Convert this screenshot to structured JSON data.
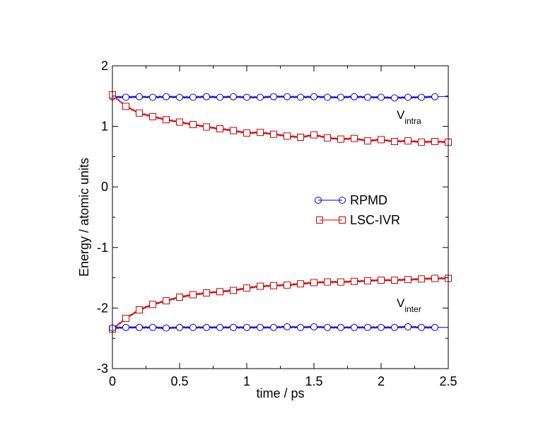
{
  "chart_data": {
    "type": "line",
    "xlabel": "time / ps",
    "ylabel": "Energy / atomic units",
    "xlim": [
      0,
      2.5
    ],
    "ylim": [
      -3,
      2
    ],
    "xticks": [
      0,
      0.5,
      1,
      1.5,
      2,
      2.5
    ],
    "xtick_labels": [
      "0",
      "0.5",
      "1",
      "1.5",
      "2",
      "2.5"
    ],
    "yticks": [
      -3,
      -2,
      -1,
      0,
      1,
      2
    ],
    "ytick_labels": [
      "-3",
      "-2",
      "-1",
      "0",
      "1",
      "2"
    ],
    "grid": false,
    "legend_position": "center-right",
    "legend": [
      {
        "label": "RPMD",
        "color": "#0000cc",
        "marker": "circle"
      },
      {
        "label": "LSC-IVR",
        "color": "#cc0000",
        "marker": "square"
      }
    ],
    "annotations": [
      {
        "text": "V",
        "subscript": "intra",
        "x": 2.11,
        "y": 1.18
      },
      {
        "text": "V",
        "subscript": "inter",
        "x": 2.11,
        "y": -2.0
      }
    ],
    "series": [
      {
        "name": "RPMD",
        "group": "Vintra",
        "color": "#0000cc",
        "marker": "circle",
        "x": [
          0,
          0.1,
          0.2,
          0.3,
          0.4,
          0.5,
          0.6,
          0.7,
          0.8,
          0.9,
          1.0,
          1.1,
          1.2,
          1.3,
          1.4,
          1.5,
          1.6,
          1.7,
          1.8,
          1.9,
          2.0,
          2.1,
          2.2,
          2.3,
          2.4
        ],
        "y": [
          1.49,
          1.48,
          1.49,
          1.48,
          1.49,
          1.48,
          1.48,
          1.49,
          1.48,
          1.49,
          1.48,
          1.48,
          1.49,
          1.49,
          1.48,
          1.49,
          1.48,
          1.48,
          1.49,
          1.48,
          1.48,
          1.47,
          1.48,
          1.48,
          1.49
        ]
      },
      {
        "name": "LSC-IVR",
        "group": "Vintra",
        "color": "#cc0000",
        "marker": "square",
        "x": [
          0,
          0.1,
          0.2,
          0.3,
          0.4,
          0.5,
          0.6,
          0.7,
          0.8,
          0.9,
          1.0,
          1.1,
          1.2,
          1.3,
          1.4,
          1.5,
          1.6,
          1.7,
          1.8,
          1.9,
          2.0,
          2.1,
          2.2,
          2.3,
          2.4,
          2.5
        ],
        "y": [
          1.52,
          1.33,
          1.22,
          1.16,
          1.11,
          1.07,
          1.03,
          0.99,
          0.96,
          0.93,
          0.89,
          0.9,
          0.87,
          0.84,
          0.82,
          0.86,
          0.81,
          0.79,
          0.8,
          0.76,
          0.78,
          0.75,
          0.76,
          0.74,
          0.75,
          0.74
        ]
      },
      {
        "name": "LSC-IVR",
        "group": "Vinter",
        "color": "#cc0000",
        "marker": "square",
        "x": [
          0,
          0.1,
          0.2,
          0.3,
          0.4,
          0.5,
          0.6,
          0.7,
          0.8,
          0.9,
          1.0,
          1.1,
          1.2,
          1.3,
          1.4,
          1.5,
          1.6,
          1.7,
          1.8,
          1.9,
          2.0,
          2.1,
          2.2,
          2.3,
          2.4,
          2.5
        ],
        "y": [
          -2.35,
          -2.17,
          -2.03,
          -1.94,
          -1.88,
          -1.82,
          -1.78,
          -1.75,
          -1.73,
          -1.71,
          -1.67,
          -1.64,
          -1.63,
          -1.62,
          -1.6,
          -1.58,
          -1.57,
          -1.57,
          -1.56,
          -1.55,
          -1.54,
          -1.54,
          -1.53,
          -1.52,
          -1.51,
          -1.51
        ]
      },
      {
        "name": "RPMD",
        "group": "Vinter",
        "color": "#0000cc",
        "marker": "circle",
        "x": [
          0,
          0.1,
          0.2,
          0.3,
          0.4,
          0.5,
          0.6,
          0.7,
          0.8,
          0.9,
          1.0,
          1.1,
          1.2,
          1.3,
          1.4,
          1.5,
          1.6,
          1.7,
          1.8,
          1.9,
          2.0,
          2.1,
          2.2,
          2.3,
          2.4
        ],
        "y": [
          -2.33,
          -2.32,
          -2.32,
          -2.32,
          -2.33,
          -2.32,
          -2.32,
          -2.32,
          -2.32,
          -2.32,
          -2.32,
          -2.32,
          -2.32,
          -2.31,
          -2.32,
          -2.31,
          -2.32,
          -2.32,
          -2.32,
          -2.32,
          -2.32,
          -2.32,
          -2.31,
          -2.32,
          -2.32
        ]
      }
    ]
  }
}
